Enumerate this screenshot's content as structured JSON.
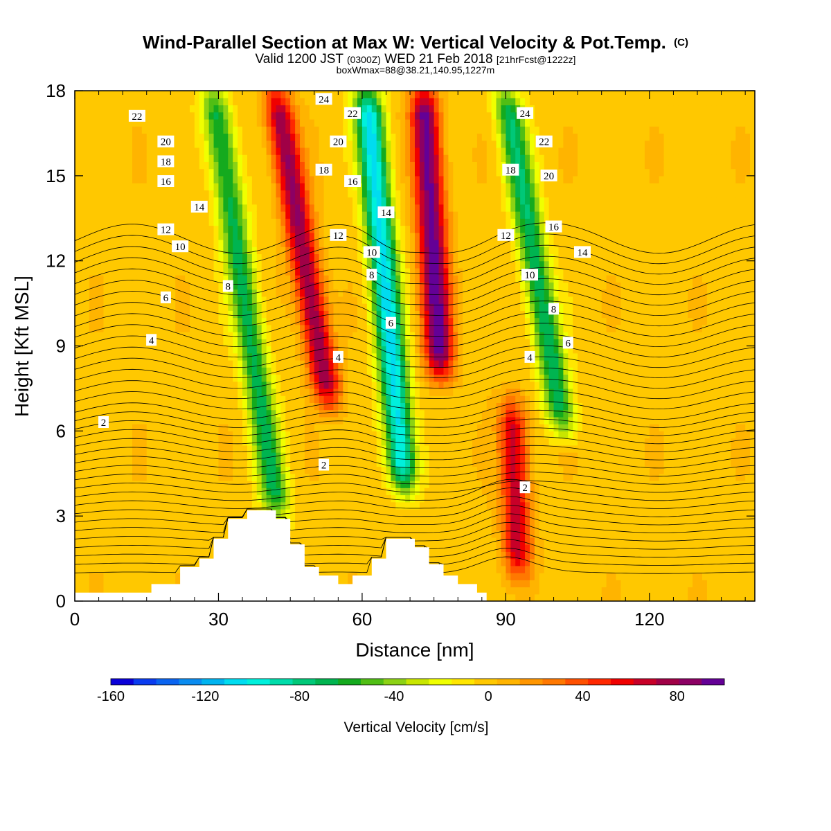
{
  "header": {
    "title": "Wind-Parallel Section at Max W: Vertical Velocity & Pot.Temp.",
    "title_mark": "(C)",
    "valid_prefix": "Valid 1200 JST",
    "valid_z": "(0300Z)",
    "valid_date": "WED 21 Feb 2018",
    "fcst": "[21hrFcst@1222z]",
    "box": "boxWmax=88@38.21,140.95,1227m"
  },
  "chart_data": {
    "type": "heatmap",
    "xlabel": "Distance [nm]",
    "ylabel": "Height [Kft MSL]",
    "xlim": [
      0,
      142
    ],
    "ylim": [
      0,
      18
    ],
    "x_ticks": [
      "0",
      "30",
      "60",
      "90",
      "120"
    ],
    "y_ticks": [
      "0",
      "3",
      "6",
      "9",
      "12",
      "15",
      "18"
    ],
    "colorbar": {
      "label": "Vertical Velocity [cm/s]",
      "range": [
        -160,
        100
      ],
      "step": 10,
      "tick_labels": [
        "-160",
        "-120",
        "-80",
        "-40",
        "0",
        "40",
        "80"
      ],
      "colors": [
        "#0a00d8",
        "#0a3cf0",
        "#0a64f0",
        "#0a8cf0",
        "#00b4f0",
        "#00dcf0",
        "#00f0dc",
        "#00dcaa",
        "#00c878",
        "#00b450",
        "#14aa1e",
        "#50be14",
        "#8cd214",
        "#c8e600",
        "#f0ff00",
        "#ffe600",
        "#ffc800",
        "#ffb400",
        "#ff9600",
        "#ff7800",
        "#ff5000",
        "#ff2800",
        "#f00000",
        "#c80028",
        "#a00046",
        "#8c0064",
        "#640096"
      ]
    },
    "velocity_features": [
      {
        "x": 37,
        "z_range": [
          3,
          18
        ],
        "w": -70,
        "lean": 0.9
      },
      {
        "x": 51,
        "z_range": [
          7,
          18
        ],
        "w": 85,
        "lean": 1.0
      },
      {
        "x": 66,
        "z_range": [
          4,
          18
        ],
        "w": -110,
        "lean": 0.55
      },
      {
        "x": 76,
        "z_range": [
          8,
          18
        ],
        "w": 100,
        "lean": 0.35
      },
      {
        "x": 91,
        "z_range": [
          1,
          7
        ],
        "w": 70,
        "lean": 0.2
      },
      {
        "x": 99,
        "z_range": [
          6,
          18
        ],
        "w": -75,
        "lean": 1.0
      }
    ],
    "terrain": [
      [
        0,
        0.3
      ],
      [
        16,
        0.3
      ],
      [
        16,
        0.6
      ],
      [
        22,
        0.6
      ],
      [
        22,
        1.2
      ],
      [
        26,
        1.2
      ],
      [
        26,
        1.5
      ],
      [
        29,
        1.5
      ],
      [
        29,
        2.2
      ],
      [
        32,
        2.2
      ],
      [
        32,
        2.9
      ],
      [
        36,
        2.9
      ],
      [
        36,
        3.2
      ],
      [
        42,
        3.2
      ],
      [
        42,
        2.9
      ],
      [
        45,
        2.9
      ],
      [
        45,
        2.0
      ],
      [
        48,
        2.0
      ],
      [
        48,
        1.2
      ],
      [
        51,
        1.2
      ],
      [
        51,
        0.9
      ],
      [
        55,
        0.9
      ],
      [
        55,
        0.6
      ],
      [
        58,
        0.6
      ],
      [
        58,
        0.9
      ],
      [
        62,
        0.9
      ],
      [
        62,
        1.5
      ],
      [
        65,
        1.5
      ],
      [
        65,
        2.2
      ],
      [
        71,
        2.2
      ],
      [
        71,
        1.9
      ],
      [
        74,
        1.9
      ],
      [
        74,
        1.3
      ],
      [
        77,
        1.3
      ],
      [
        77,
        0.9
      ],
      [
        80,
        0.9
      ],
      [
        80,
        0.6
      ],
      [
        84,
        0.6
      ],
      [
        84,
        0.3
      ],
      [
        86,
        0.3
      ],
      [
        86,
        0
      ],
      [
        142,
        0
      ]
    ],
    "theta_contours": {
      "levels": [
        "2",
        "4",
        "6",
        "8",
        "10",
        "12",
        "14",
        "16",
        "18",
        "20",
        "22",
        "24"
      ],
      "labels": [
        {
          "text": "22",
          "x": 13,
          "z": 17.1
        },
        {
          "text": "20",
          "x": 19,
          "z": 16.2
        },
        {
          "text": "18",
          "x": 19,
          "z": 15.5
        },
        {
          "text": "16",
          "x": 19,
          "z": 14.8
        },
        {
          "text": "14",
          "x": 26,
          "z": 13.9
        },
        {
          "text": "12",
          "x": 19,
          "z": 13.1
        },
        {
          "text": "10",
          "x": 22,
          "z": 12.5
        },
        {
          "text": "8",
          "x": 32,
          "z": 11.1
        },
        {
          "text": "6",
          "x": 19,
          "z": 10.7
        },
        {
          "text": "4",
          "x": 16,
          "z": 9.2
        },
        {
          "text": "2",
          "x": 6,
          "z": 6.3
        },
        {
          "text": "24",
          "x": 52,
          "z": 17.7
        },
        {
          "text": "22",
          "x": 58,
          "z": 17.2
        },
        {
          "text": "20",
          "x": 55,
          "z": 16.2
        },
        {
          "text": "18",
          "x": 52,
          "z": 15.2
        },
        {
          "text": "16",
          "x": 58,
          "z": 14.8
        },
        {
          "text": "14",
          "x": 65,
          "z": 13.7
        },
        {
          "text": "12",
          "x": 55,
          "z": 12.9
        },
        {
          "text": "10",
          "x": 62,
          "z": 12.3
        },
        {
          "text": "8",
          "x": 62,
          "z": 11.5
        },
        {
          "text": "6",
          "x": 66,
          "z": 9.8
        },
        {
          "text": "4",
          "x": 55,
          "z": 8.6
        },
        {
          "text": "2",
          "x": 52,
          "z": 4.8
        },
        {
          "text": "24",
          "x": 94,
          "z": 17.2
        },
        {
          "text": "22",
          "x": 98,
          "z": 16.2
        },
        {
          "text": "18",
          "x": 91,
          "z": 15.2
        },
        {
          "text": "20",
          "x": 99,
          "z": 15.0
        },
        {
          "text": "16",
          "x": 100,
          "z": 13.2
        },
        {
          "text": "12",
          "x": 90,
          "z": 12.9
        },
        {
          "text": "14",
          "x": 106,
          "z": 12.3
        },
        {
          "text": "10",
          "x": 95,
          "z": 11.5
        },
        {
          "text": "8",
          "x": 100,
          "z": 10.3
        },
        {
          "text": "6",
          "x": 103,
          "z": 9.1
        },
        {
          "text": "4",
          "x": 95,
          "z": 8.6
        },
        {
          "text": "2",
          "x": 94,
          "z": 4.0
        }
      ]
    }
  }
}
